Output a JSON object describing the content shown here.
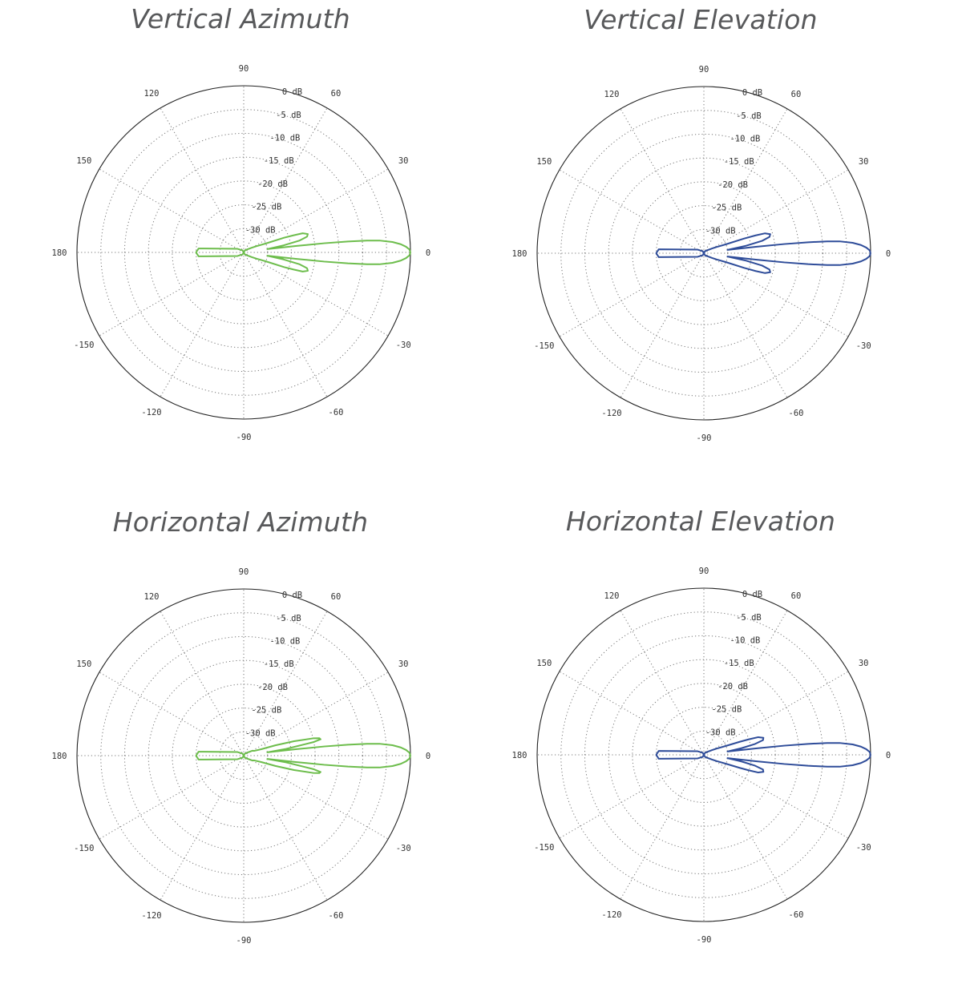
{
  "chart_data": [
    {
      "type": "polar",
      "title": "Vertical Azimuth",
      "color": "#6dbd4c",
      "r_unit": "dB",
      "r_range": [
        -35,
        0
      ],
      "r_ticks": [
        0,
        -5,
        -10,
        -15,
        -20,
        -25,
        -30
      ],
      "r_tick_labels": [
        "0 dB",
        "-5 dB",
        "-10 dB",
        "-15 dB",
        "-20 dB",
        "-25 dB",
        "-30 dB"
      ],
      "angle_ticks": [
        90,
        60,
        30,
        0,
        -30,
        -60,
        -90,
        -120,
        -150,
        180,
        150,
        120
      ],
      "angle_tick_labels": [
        "90",
        "60",
        "30",
        "0",
        "-30",
        "-60",
        "-90",
        "-120",
        "-150",
        "180",
        "150",
        "120"
      ],
      "grid": true,
      "series": [
        {
          "angles_deg": [
            0,
            1,
            2,
            3,
            4,
            5,
            5.5,
            6,
            6.5,
            7,
            8,
            10,
            12,
            14,
            16,
            18,
            19,
            20,
            22,
            26,
            30,
            40,
            60,
            90,
            120,
            150,
            175,
            180,
            -175,
            -150,
            -120,
            -90,
            -60,
            -40,
            -30,
            -26,
            -22,
            -20,
            -19,
            -18,
            -16,
            -14,
            -12,
            -10,
            -8,
            -7,
            -6.5,
            -6,
            -5.5,
            -5,
            -4,
            -3,
            -2,
            -1,
            0
          ],
          "gain_db": [
            0,
            -0.2,
            -0.9,
            -2.0,
            -3.7,
            -6.4,
            -9.0,
            -13.0,
            -18.0,
            -24.0,
            -30.0,
            -26.5,
            -23.0,
            -21.3,
            -21.0,
            -22.0,
            -24.0,
            -26.0,
            -30.0,
            -32.0,
            -33.0,
            -34.0,
            -34.5,
            -35.0,
            -34.5,
            -33.5,
            -25.5,
            -25.0,
            -25.5,
            -33.5,
            -34.5,
            -35.0,
            -34.5,
            -34.0,
            -33.0,
            -32.0,
            -30.0,
            -26.0,
            -24.0,
            -22.0,
            -21.0,
            -21.3,
            -23.0,
            -26.5,
            -30.0,
            -24.0,
            -18.0,
            -13.0,
            -9.0,
            -6.4,
            -3.7,
            -2.0,
            -0.9,
            -0.2,
            0
          ]
        }
      ]
    },
    {
      "type": "polar",
      "title": "Vertical Elevation",
      "color": "#2e4c99",
      "r_unit": "dB",
      "r_range": [
        -35,
        0
      ],
      "r_ticks": [
        0,
        -5,
        -10,
        -15,
        -20,
        -25,
        -30
      ],
      "r_tick_labels": [
        "0 dB",
        "-5 dB",
        "-10 dB",
        "-15 dB",
        "-20 dB",
        "-25 dB",
        "-30 dB"
      ],
      "angle_ticks": [
        90,
        60,
        30,
        0,
        -30,
        -60,
        -90,
        -120,
        -150,
        180,
        150,
        120
      ],
      "angle_tick_labels": [
        "90",
        "60",
        "30",
        "0",
        "-30",
        "-60",
        "-90",
        "-120",
        "-150",
        "180",
        "150",
        "120"
      ],
      "grid": true,
      "series": [
        {
          "angles_deg": [
            0,
            1,
            2,
            3,
            4,
            5,
            5.5,
            6,
            6.5,
            7,
            8,
            10,
            12,
            14,
            16,
            18,
            19,
            20,
            22,
            26,
            30,
            40,
            60,
            90,
            120,
            150,
            175,
            180,
            -175,
            -150,
            -120,
            -90,
            -60,
            -40,
            -30,
            -26,
            -22,
            -20,
            -19,
            -18,
            -16,
            -14,
            -12,
            -10,
            -8,
            -7,
            -6.5,
            -6,
            -5.5,
            -5,
            -4,
            -3,
            -2,
            -1,
            0
          ],
          "gain_db": [
            0,
            -0.2,
            -0.9,
            -2.0,
            -3.7,
            -6.4,
            -9.0,
            -13.0,
            -18.0,
            -24.0,
            -30.0,
            -26.0,
            -22.5,
            -20.8,
            -20.5,
            -21.5,
            -23.5,
            -26.0,
            -30.0,
            -32.0,
            -33.0,
            -34.0,
            -34.5,
            -35.0,
            -34.5,
            -33.5,
            -25.5,
            -25.0,
            -25.5,
            -33.5,
            -34.5,
            -35.0,
            -34.5,
            -34.0,
            -33.0,
            -32.0,
            -30.0,
            -26.0,
            -23.5,
            -21.5,
            -20.5,
            -20.8,
            -22.5,
            -26.0,
            -30.0,
            -24.0,
            -18.0,
            -13.0,
            -9.0,
            -6.4,
            -3.7,
            -2.0,
            -0.9,
            -0.2,
            0
          ]
        }
      ]
    },
    {
      "type": "polar",
      "title": "Horizontal Azimuth",
      "color": "#6dbd4c",
      "r_unit": "dB",
      "r_range": [
        -35,
        0
      ],
      "r_ticks": [
        0,
        -5,
        -10,
        -15,
        -20,
        -25,
        -30
      ],
      "r_tick_labels": [
        "0 dB",
        "-5 dB",
        "-10 dB",
        "-15 dB",
        "-20 dB",
        "-25 dB",
        "-30 dB"
      ],
      "angle_ticks": [
        90,
        60,
        30,
        0,
        -30,
        -60,
        -90,
        -120,
        -150,
        180,
        150,
        120
      ],
      "angle_tick_labels": [
        "90",
        "60",
        "30",
        "0",
        "-30",
        "-60",
        "-90",
        "-120",
        "-150",
        "180",
        "150",
        "120"
      ],
      "grid": true,
      "series": [
        {
          "angles_deg": [
            0,
            1,
            2,
            3,
            4,
            5,
            5.5,
            6,
            6.5,
            7,
            8,
            9,
            11,
            12,
            13,
            14,
            16,
            18,
            20,
            24,
            30,
            40,
            60,
            90,
            120,
            150,
            175,
            180,
            -175,
            -150,
            -120,
            -90,
            -60,
            -40,
            -30,
            -24,
            -20,
            -18,
            -16,
            -14,
            -13,
            -12,
            -11,
            -9,
            -8,
            -7,
            -6.5,
            -6,
            -5.5,
            -5,
            -4,
            -3,
            -2,
            -1,
            0
          ],
          "gain_db": [
            0,
            -0.2,
            -0.9,
            -2.0,
            -3.7,
            -6.4,
            -9.0,
            -13.0,
            -18.0,
            -24.0,
            -30.0,
            -26.0,
            -20.0,
            -18.5,
            -18.7,
            -20.0,
            -24.0,
            -28.0,
            -31.0,
            -32.5,
            -33.0,
            -34.0,
            -34.5,
            -35.0,
            -34.5,
            -33.5,
            -25.5,
            -25.0,
            -25.5,
            -33.5,
            -34.5,
            -35.0,
            -34.5,
            -34.0,
            -33.0,
            -32.5,
            -31.0,
            -28.0,
            -24.0,
            -20.0,
            -18.7,
            -18.5,
            -20.0,
            -26.0,
            -30.0,
            -24.0,
            -18.0,
            -13.0,
            -9.0,
            -6.4,
            -3.7,
            -2.0,
            -0.9,
            -0.2,
            0
          ]
        }
      ]
    },
    {
      "type": "polar",
      "title": "Horizontal Elevation",
      "color": "#2e4c99",
      "r_unit": "dB",
      "r_range": [
        -35,
        0
      ],
      "r_ticks": [
        0,
        -5,
        -10,
        -15,
        -20,
        -25,
        -30
      ],
      "r_tick_labels": [
        "0 dB",
        "-5 dB",
        "-10 dB",
        "-15 dB",
        "-20 dB",
        "-25 dB",
        "-30 dB"
      ],
      "angle_ticks": [
        90,
        60,
        30,
        0,
        -30,
        -60,
        -90,
        -120,
        -150,
        180,
        150,
        120
      ],
      "angle_tick_labels": [
        "90",
        "60",
        "30",
        "0",
        "-30",
        "-60",
        "-90",
        "-120",
        "-150",
        "180",
        "150",
        "120"
      ],
      "grid": true,
      "series": [
        {
          "angles_deg": [
            0,
            1,
            2,
            3,
            4,
            5,
            5.5,
            6,
            6.5,
            7,
            8,
            10,
            12,
            14,
            16,
            18,
            19,
            20,
            22,
            26,
            30,
            40,
            60,
            90,
            120,
            150,
            175,
            180,
            -175,
            -150,
            -120,
            -90,
            -60,
            -40,
            -30,
            -26,
            -22,
            -20,
            -19,
            -18,
            -16,
            -14,
            -12,
            -10,
            -8,
            -7,
            -6.5,
            -6,
            -5.5,
            -5,
            -4,
            -3,
            -2,
            -1,
            0
          ],
          "gain_db": [
            0,
            -0.2,
            -0.9,
            -2.0,
            -3.7,
            -6.4,
            -9.0,
            -13.0,
            -18.0,
            -24.0,
            -30.0,
            -27.0,
            -24.0,
            -22.2,
            -22.0,
            -23.0,
            -25.0,
            -27.0,
            -30.0,
            -32.0,
            -33.0,
            -34.0,
            -34.5,
            -35.0,
            -34.5,
            -33.5,
            -25.5,
            -25.0,
            -25.5,
            -33.5,
            -34.5,
            -35.0,
            -34.5,
            -34.0,
            -33.0,
            -32.0,
            -30.0,
            -27.0,
            -25.0,
            -23.0,
            -22.0,
            -22.2,
            -24.0,
            -27.0,
            -30.0,
            -24.0,
            -18.0,
            -13.0,
            -9.0,
            -6.4,
            -3.7,
            -2.0,
            -0.9,
            -0.2,
            0
          ]
        }
      ]
    }
  ]
}
